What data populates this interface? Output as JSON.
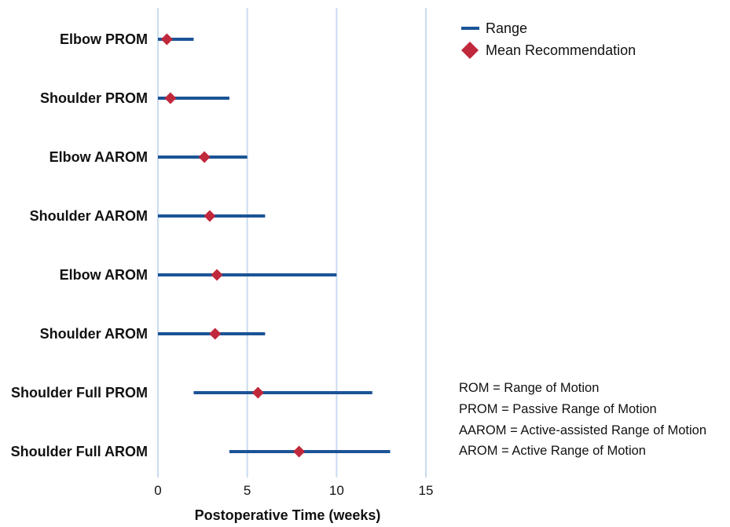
{
  "chart_data": {
    "type": "range-dot",
    "categories": [
      "Elbow PROM",
      "Shoulder PROM",
      "Elbow AAROM",
      "Shoulder AAROM",
      "Elbow AROM",
      "Shoulder AROM",
      "Shoulder Full PROM",
      "Shoulder Full AROM"
    ],
    "series": [
      {
        "name": "Range",
        "values": [
          [
            0,
            2
          ],
          [
            0,
            4
          ],
          [
            0,
            5
          ],
          [
            0,
            6
          ],
          [
            0,
            10
          ],
          [
            0,
            6
          ],
          [
            2,
            12
          ],
          [
            4,
            13
          ]
        ]
      },
      {
        "name": "Mean Recommendation",
        "values": [
          0.5,
          0.7,
          2.6,
          2.9,
          3.3,
          3.2,
          5.6,
          7.9
        ]
      }
    ],
    "xlabel": "Postoperative Time (weeks)",
    "xlim": [
      0,
      15
    ],
    "xticks": [
      0,
      5,
      10,
      15
    ],
    "xtick_labels": [
      "0",
      "5",
      "10",
      "15"
    ],
    "grid": "vertical",
    "legend": "top-right",
    "notes": [
      "ROM = Range of Motion",
      "PROM = Passive Range of Motion",
      "AAROM = Active-assisted Range of Motion",
      "AROM = Active Range of Motion"
    ],
    "colors": {
      "range": "#1b5496",
      "mean": "#c0283b",
      "grid": "#c9dcef"
    }
  }
}
